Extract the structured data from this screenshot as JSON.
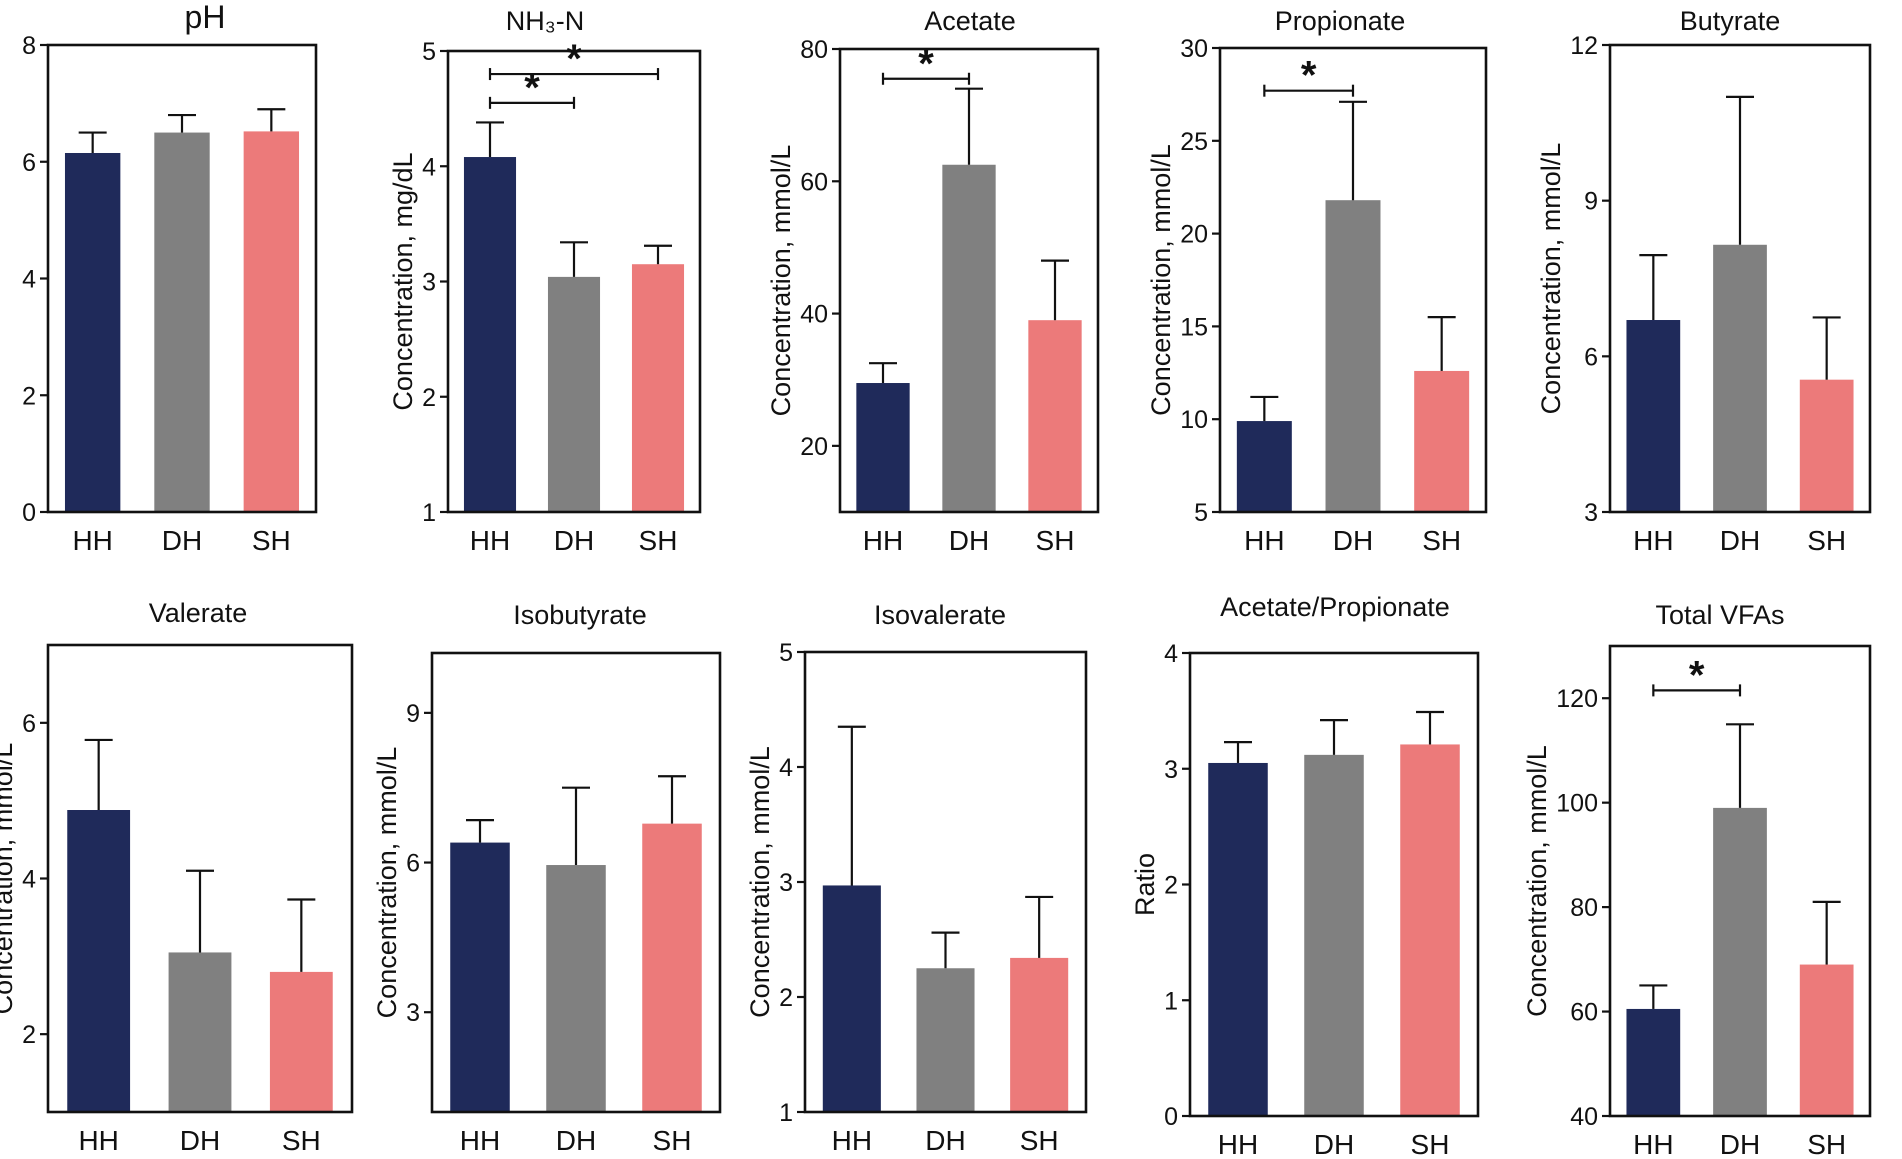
{
  "colors": {
    "HH": "#1f2a5a",
    "DH": "#808080",
    "SH": "#ec7a7a",
    "axis": "#111111"
  },
  "chart_data": [
    {
      "type": "bar",
      "title": "pH",
      "ylabel": "",
      "categories": [
        "HH",
        "DH",
        "SH"
      ],
      "values": [
        6.15,
        6.5,
        6.52
      ],
      "errors": [
        0.35,
        0.3,
        0.38
      ],
      "ylim": [
        0,
        8
      ],
      "yticks": [
        0,
        2,
        4,
        6,
        8
      ],
      "yticklabels": [
        "0",
        "2",
        "4",
        "6",
        "8"
      ],
      "significance": []
    },
    {
      "type": "bar",
      "title": "NH₃-N",
      "ylabel": "Concentration, mg/dL",
      "categories": [
        "HH",
        "DH",
        "SH"
      ],
      "values": [
        4.08,
        3.04,
        3.15
      ],
      "errors": [
        0.3,
        0.3,
        0.16
      ],
      "ylim": [
        1,
        5
      ],
      "yticks": [
        1,
        2,
        3,
        4,
        5
      ],
      "yticklabels": [
        "1",
        "2",
        "3",
        "4",
        "5"
      ],
      "significance": [
        {
          "from": 0,
          "to": 1,
          "y": 4.55,
          "label": "*"
        },
        {
          "from": 0,
          "to": 2,
          "y": 4.8,
          "label": "*"
        }
      ]
    },
    {
      "type": "bar",
      "title": "Acetate",
      "ylabel": "Concentration, mmol/L",
      "categories": [
        "HH",
        "DH",
        "SH"
      ],
      "values": [
        29.5,
        62.5,
        39.0
      ],
      "errors": [
        3.0,
        11.5,
        9.0
      ],
      "ylim": [
        10,
        80
      ],
      "yticks": [
        20,
        40,
        60,
        80
      ],
      "yticklabels": [
        "20",
        "40",
        "60",
        "80"
      ],
      "significance": [
        {
          "from": 0,
          "to": 1,
          "y": 75.5,
          "label": "*"
        }
      ]
    },
    {
      "type": "bar",
      "title": "Propionate",
      "ylabel": "Concentration, mmol/L",
      "categories": [
        "HH",
        "DH",
        "SH"
      ],
      "values": [
        9.9,
        21.8,
        12.6
      ],
      "errors": [
        1.3,
        5.3,
        2.9
      ],
      "ylim": [
        5,
        30
      ],
      "yticks": [
        5,
        10,
        15,
        20,
        25,
        30
      ],
      "yticklabels": [
        "5",
        "10",
        "15",
        "20",
        "25",
        "30"
      ],
      "significance": [
        {
          "from": 0,
          "to": 1,
          "y": 27.7,
          "label": "*"
        }
      ]
    },
    {
      "type": "bar",
      "title": "Butyrate",
      "ylabel": "Concentration, mmol/L",
      "categories": [
        "HH",
        "DH",
        "SH"
      ],
      "values": [
        6.7,
        8.15,
        5.55
      ],
      "errors": [
        1.25,
        2.85,
        1.2
      ],
      "ylim": [
        3,
        12
      ],
      "yticks": [
        3,
        6,
        9,
        12
      ],
      "yticklabels": [
        "3",
        "6",
        "9",
        "12"
      ],
      "significance": []
    },
    {
      "type": "bar",
      "title": "Valerate",
      "ylabel": "Concentration, mmol/L",
      "categories": [
        "HH",
        "DH",
        "SH"
      ],
      "values": [
        4.88,
        3.05,
        2.8
      ],
      "errors": [
        0.9,
        1.05,
        0.93
      ],
      "ylim": [
        1,
        7
      ],
      "yticks": [
        2,
        4,
        6
      ],
      "yticklabels": [
        "2",
        "4",
        "6"
      ],
      "significance": []
    },
    {
      "type": "bar",
      "title": "Isobutyrate",
      "ylabel": "Concentration, mmol/L",
      "categories": [
        "HH",
        "DH",
        "SH"
      ],
      "values": [
        6.4,
        5.95,
        6.78
      ],
      "errors": [
        0.45,
        1.55,
        0.95
      ],
      "ylim": [
        1.0,
        10.2
      ],
      "yticks": [
        3,
        6,
        9
      ],
      "yticklabels": [
        "3",
        "6",
        "9"
      ],
      "significance": []
    },
    {
      "type": "bar",
      "title": "Isovalerate",
      "ylabel": "Concentration, mmol/L",
      "categories": [
        "HH",
        "DH",
        "SH"
      ],
      "values": [
        2.97,
        2.25,
        2.34
      ],
      "errors": [
        1.38,
        0.31,
        0.53
      ],
      "ylim": [
        1,
        5
      ],
      "yticks": [
        1,
        2,
        3,
        4,
        5
      ],
      "yticklabels": [
        "1",
        "2",
        "3",
        "4",
        "5"
      ],
      "significance": []
    },
    {
      "type": "bar",
      "title": "Acetate/Propionate",
      "ylabel": "Ratio",
      "categories": [
        "HH",
        "DH",
        "SH"
      ],
      "values": [
        3.05,
        3.12,
        3.21
      ],
      "errors": [
        0.18,
        0.3,
        0.28
      ],
      "ylim": [
        0,
        4
      ],
      "yticks": [
        0,
        1,
        2,
        3,
        4
      ],
      "yticklabels": [
        "0",
        "1",
        "2",
        "3",
        "4"
      ],
      "significance": []
    },
    {
      "type": "bar",
      "title": "Total VFAs",
      "ylabel": "Concentration, mmol/L",
      "categories": [
        "HH",
        "DH",
        "SH"
      ],
      "values": [
        60.5,
        99.0,
        69.0
      ],
      "errors": [
        4.5,
        16.0,
        12.0
      ],
      "ylim": [
        40,
        130
      ],
      "yticks": [
        40,
        60,
        80,
        100,
        120
      ],
      "yticklabels": [
        "40",
        "60",
        "80",
        "100",
        "120"
      ],
      "significance": [
        {
          "from": 0,
          "to": 1,
          "y": 121.5,
          "label": "*"
        }
      ]
    }
  ]
}
